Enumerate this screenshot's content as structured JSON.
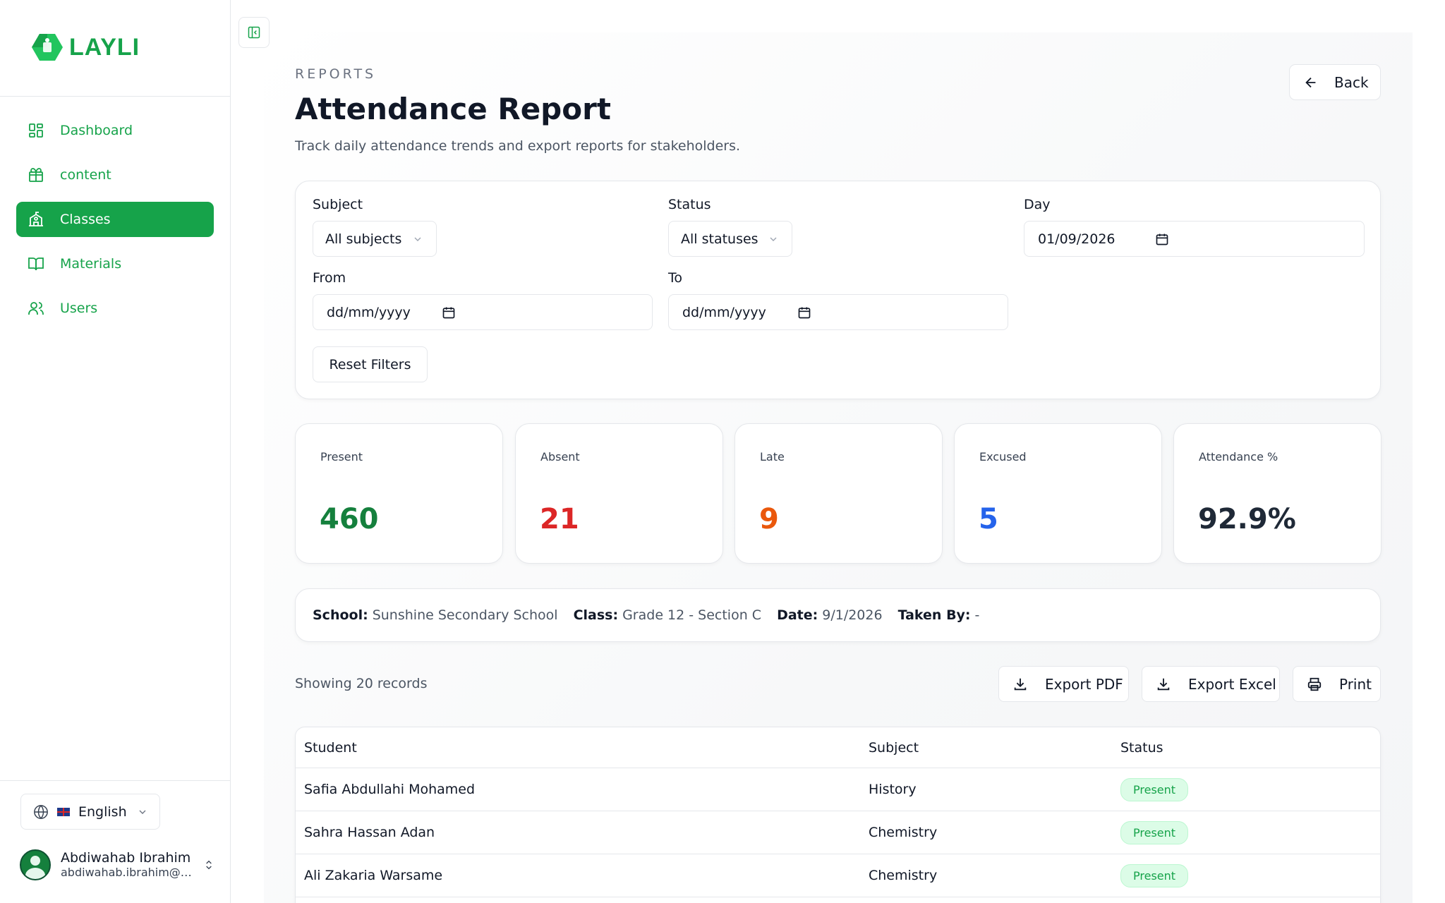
{
  "brand": {
    "name": "LAYLI",
    "color": "#16a34a"
  },
  "sidebar": {
    "items": [
      {
        "label": "Dashboard",
        "icon": "dashboard-icon",
        "active": false
      },
      {
        "label": "content",
        "icon": "gift-box-icon",
        "active": false
      },
      {
        "label": "Classes",
        "icon": "school-icon",
        "active": true
      },
      {
        "label": "Materials",
        "icon": "book-open-icon",
        "active": false
      },
      {
        "label": "Users",
        "icon": "users-icon",
        "active": false
      }
    ],
    "language": "English",
    "user": {
      "name": "Abdiwahab Ibrahim",
      "email": "abdiwahab.ibrahim@s..."
    }
  },
  "header": {
    "eyebrow": "REPORTS",
    "title": "Attendance Report",
    "subtitle": "Track daily attendance trends and export reports for stakeholders.",
    "back_label": "Back"
  },
  "filters": {
    "subject_label": "Subject",
    "subject_value": "All subjects",
    "status_label": "Status",
    "status_value": "All statuses",
    "day_label": "Day",
    "day_value": "01/09/2026",
    "from_label": "From",
    "from_value": "dd/mm/yyyy",
    "to_label": "To",
    "to_value": "dd/mm/yyyy",
    "reset_label": "Reset Filters"
  },
  "stats": [
    {
      "label": "Present",
      "value": "460",
      "color": "#15803d"
    },
    {
      "label": "Absent",
      "value": "21",
      "color": "#dc2626"
    },
    {
      "label": "Late",
      "value": "9",
      "color": "#ea580c"
    },
    {
      "label": "Excused",
      "value": "5",
      "color": "#2563eb"
    },
    {
      "label": "Attendance %",
      "value": "92.9%",
      "color": "#1f2937"
    }
  ],
  "meta": {
    "school_label": "School:",
    "school_value": "Sunshine Secondary School",
    "class_label": "Class:",
    "class_value": "Grade 12 - Section C",
    "date_label": "Date:",
    "date_value": "9/1/2026",
    "taken_label": "Taken By:",
    "taken_value": "-"
  },
  "records": {
    "showing": "Showing 20 records",
    "export_pdf": "Export PDF",
    "export_excel": "Export Excel",
    "print": "Print"
  },
  "table": {
    "headers": [
      "Student",
      "Subject",
      "Status"
    ],
    "rows": [
      {
        "student": "Safia Abdullahi Mohamed",
        "subject": "History",
        "status": "Present"
      },
      {
        "student": "Sahra Hassan Adan",
        "subject": "Chemistry",
        "status": "Present"
      },
      {
        "student": "Ali Zakaria Warsame",
        "subject": "Chemistry",
        "status": "Present"
      }
    ]
  }
}
